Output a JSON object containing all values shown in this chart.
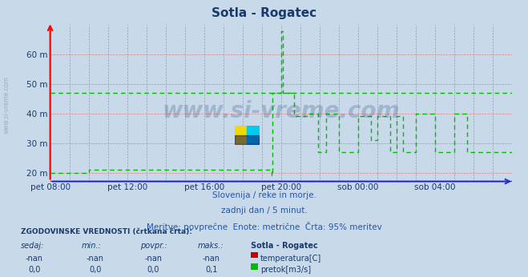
{
  "title": "Sotla - Rogatec",
  "title_color": "#1a3a6b",
  "bg_color": "#c8daea",
  "plot_bg_color": "#c8daea",
  "grid_color_v": "#e08080",
  "grid_color_h": "#e08080",
  "axis_color": "#3333cc",
  "tick_color": "#1a3a6b",
  "yticks": [
    20,
    30,
    40,
    50,
    60
  ],
  "ytick_labels": [
    "20 m",
    "30 m",
    "40 m",
    "50 m",
    "60 m"
  ],
  "ylim": [
    17,
    70
  ],
  "xtick_labels": [
    "pet 08:00",
    "pet 12:00",
    "pet 16:00",
    "pet 20:00",
    "sob 00:00",
    "sob 04:00"
  ],
  "xtick_positions": [
    0,
    240,
    480,
    720,
    960,
    1200
  ],
  "xlim": [
    0,
    1440
  ],
  "watermark": "www.si-vreme.com",
  "subtitle1": "Slovenija / reke in morje.",
  "subtitle2": "zadnji dan / 5 minut.",
  "subtitle3": "Meritve: povprečne  Enote: metrične  Črta: 95% meritev",
  "subtitle_color": "#2255aa",
  "legend_title": "ZGODOVINSKE VREDNOSTI (črtkana črta):",
  "legend_headers": [
    "sedaj:",
    "min.:",
    "povpr.:",
    "maks.:",
    "Sotla - Rogatec"
  ],
  "legend_row1": [
    "-nan",
    "-nan",
    "-nan",
    "-nan",
    "temperatura[C]"
  ],
  "legend_row2": [
    "0,0",
    "0,0",
    "0,0",
    "0,1",
    "pretok[m3/s]"
  ],
  "flow_color": "#00bb00",
  "temp_color": "#cc0000",
  "avg_flow_value": 47,
  "flow_data_x": [
    0,
    120,
    120,
    360,
    360,
    480,
    480,
    690,
    690,
    693,
    693,
    720,
    720,
    724,
    724,
    760,
    760,
    800,
    800,
    835,
    835,
    860,
    860,
    900,
    900,
    960,
    960,
    1000,
    1000,
    1020,
    1020,
    1060,
    1060,
    1080,
    1080,
    1100,
    1100,
    1140,
    1140,
    1200,
    1200,
    1260,
    1260,
    1300,
    1300,
    1380,
    1380,
    1440
  ],
  "flow_data_y": [
    20,
    20,
    21,
    21,
    21,
    21,
    21,
    21,
    19,
    19,
    47,
    47,
    68,
    68,
    47,
    47,
    39,
    39,
    40,
    40,
    27,
    27,
    40,
    40,
    27,
    27,
    39,
    39,
    31,
    31,
    39,
    39,
    27,
    27,
    39,
    39,
    27,
    27,
    40,
    40,
    27,
    27,
    40,
    40,
    27,
    27,
    27,
    27
  ]
}
